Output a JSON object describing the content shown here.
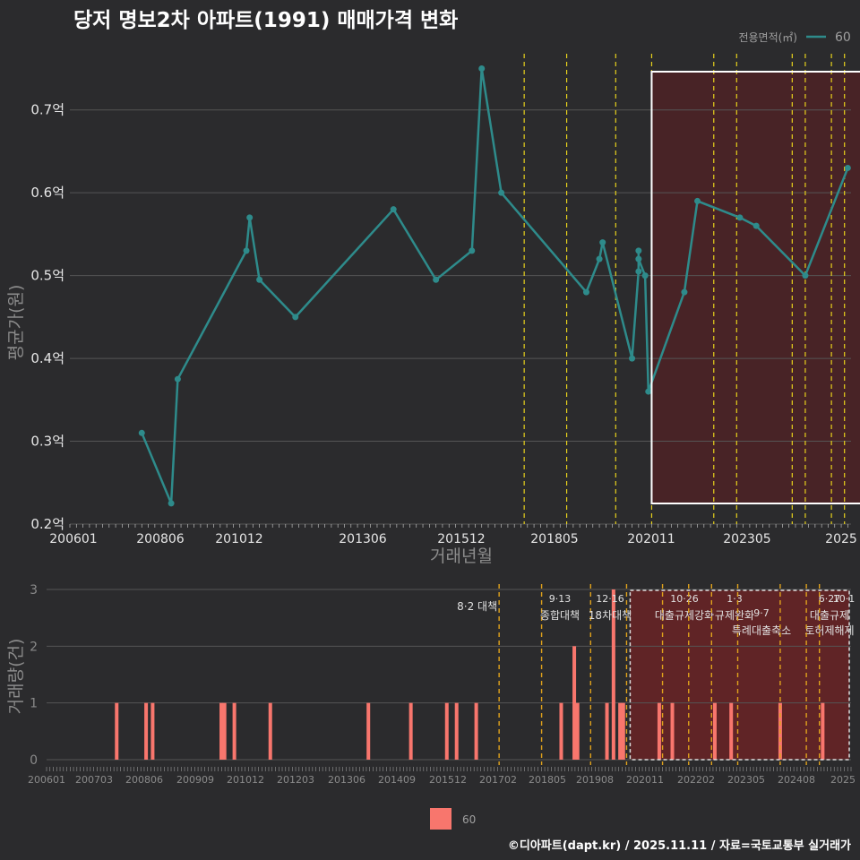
{
  "title": "당저 명보2차 아파트(1991) 매매가격 변화",
  "legend": {
    "title": "전용면적(㎡)",
    "series_label": "60"
  },
  "bottom_legend_label": "60",
  "footer": "©디아파트(dapt.kr) / 2025.11.11 / 자료=국토교통부 실거래가",
  "colors": {
    "background": "#2b2b2d",
    "line": "#2e8b8b",
    "bar": "#f8766d",
    "policy_line": "#e8d21c",
    "highlight_fill": "#4d2226",
    "grid": "#555555"
  },
  "chart_data": [
    {
      "type": "line",
      "xlabel": "거래년월",
      "ylabel": "평균가(원)",
      "ylim": [
        0.2,
        0.77
      ],
      "yticks": [
        0.2,
        0.3,
        0.4,
        0.5,
        0.6,
        0.7
      ],
      "ytick_labels": [
        "0.2억",
        "0.3억",
        "0.4억",
        "0.5억",
        "0.6억",
        "0.7억"
      ],
      "xlim": [
        "2006-01",
        "2025-12"
      ],
      "xtick_labels": [
        "200601",
        "200806",
        "201012",
        "201306",
        "201512",
        "201805",
        "202011",
        "202305",
        "2025"
      ],
      "highlight_range": [
        "2020-11",
        "2025-11"
      ],
      "series": [
        {
          "name": "60",
          "points": [
            [
              "2007-11",
              0.31
            ],
            [
              "2008-08",
              0.225
            ],
            [
              "2008-10",
              0.375
            ],
            [
              "2010-07",
              0.53
            ],
            [
              "2010-08",
              0.57
            ],
            [
              "2010-11",
              0.495
            ],
            [
              "2011-10",
              0.45
            ],
            [
              "2014-04",
              0.58
            ],
            [
              "2015-05",
              0.495
            ],
            [
              "2016-04",
              0.53
            ],
            [
              "2016-07",
              0.75
            ],
            [
              "2017-01",
              0.6
            ],
            [
              "2019-03",
              0.48
            ],
            [
              "2019-07",
              0.52
            ],
            [
              "2019-08",
              0.54
            ],
            [
              "2020-05",
              0.4
            ],
            [
              "2020-07",
              0.505
            ],
            [
              "2020-07",
              0.53
            ],
            [
              "2020-07",
              0.52
            ],
            [
              "2020-09",
              0.5
            ],
            [
              "2020-10",
              0.36
            ],
            [
              "2021-09",
              0.48
            ],
            [
              "2022-01",
              0.59
            ],
            [
              "2023-02",
              0.57
            ],
            [
              "2023-07",
              0.56
            ],
            [
              "2024-10",
              0.5
            ],
            [
              "2025-11",
              0.63
            ]
          ]
        }
      ],
      "policy_dates": [
        "2017-08",
        "2018-09",
        "2019-12",
        "2020-11",
        "2022-06",
        "2023-01",
        "2024-06",
        "2024-10",
        "2025-06",
        "2025-10"
      ]
    },
    {
      "type": "bar",
      "xlabel": "",
      "ylabel": "거래량(건)",
      "ylim": [
        0,
        3
      ],
      "yticks": [
        0,
        1,
        2,
        3
      ],
      "xtick_labels": [
        "200601",
        "200703",
        "200806",
        "200909",
        "201012",
        "201203",
        "201306",
        "201409",
        "201512",
        "201702",
        "201805",
        "201908",
        "202011",
        "202202",
        "202305",
        "202408",
        "2025"
      ],
      "highlight_range": [
        "2020-11",
        "2025-11"
      ],
      "series": [
        {
          "name": "60",
          "bars": [
            [
              "2007-11",
              1
            ],
            [
              "2008-08",
              1
            ],
            [
              "2008-10",
              1
            ],
            [
              "2010-07",
              1
            ],
            [
              "2010-08",
              1
            ],
            [
              "2010-11",
              1
            ],
            [
              "2011-10",
              1
            ],
            [
              "2014-04",
              1
            ],
            [
              "2015-05",
              1
            ],
            [
              "2016-04",
              1
            ],
            [
              "2016-07",
              1
            ],
            [
              "2017-01",
              1
            ],
            [
              "2019-03",
              1
            ],
            [
              "2019-07",
              2
            ],
            [
              "2019-08",
              1
            ],
            [
              "2020-05",
              1
            ],
            [
              "2020-07",
              3
            ],
            [
              "2020-09",
              1
            ],
            [
              "2020-10",
              1
            ],
            [
              "2021-09",
              1
            ],
            [
              "2022-01",
              1
            ],
            [
              "2023-02",
              1
            ],
            [
              "2023-07",
              1
            ],
            [
              "2024-10",
              1
            ],
            [
              "2025-11",
              1
            ]
          ]
        }
      ],
      "policies": [
        {
          "date": "2017-08",
          "label_date": "8·2",
          "name": "대책"
        },
        {
          "date": "2018-09",
          "label_date": "9·13",
          "name": "종합대책"
        },
        {
          "date": "2019-12",
          "label_date": "12·16",
          "name": "18차대책"
        },
        {
          "date": "2020-11",
          "label_date": "",
          "name": ""
        },
        {
          "date": "2021-10",
          "label_date": "10·26",
          "name": "대출규제강화"
        },
        {
          "date": "2022-06",
          "label_date": "",
          "name": ""
        },
        {
          "date": "2023-01",
          "label_date": "1·3",
          "name": "규제완화"
        },
        {
          "date": "2023-09",
          "label_date": "9·7",
          "name": "특례대출축소"
        },
        {
          "date": "2024-10",
          "label_date": "",
          "name": "토허제해제"
        },
        {
          "date": "2025-06",
          "label_date": "6·27",
          "name": "대출규제"
        },
        {
          "date": "2025-10",
          "label_date": "10·1",
          "name": ""
        }
      ]
    }
  ]
}
